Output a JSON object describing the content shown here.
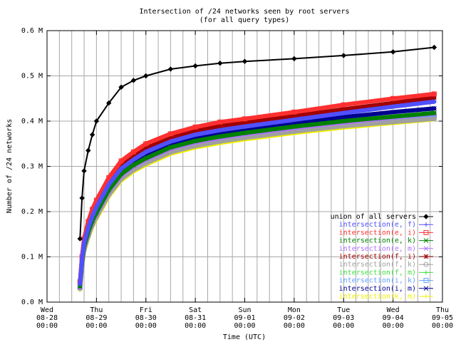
{
  "chart_data": {
    "type": "line",
    "title": "Intersection of /24 networks seen by root servers",
    "subtitle": "(for all query types)",
    "xlabel": "Time (UTC)",
    "ylabel": "Number of /24 networks",
    "x_range": [
      "2006-08-28 00:00",
      "2006-09-05 00:00"
    ],
    "ylim": [
      0,
      600000
    ],
    "grid": true,
    "legend_position": "bottom-right",
    "x_ticks": [
      {
        "day": "Wed",
        "date": "08-28",
        "time": "00:00"
      },
      {
        "day": "Thu",
        "date": "08-29",
        "time": "00:00"
      },
      {
        "day": "Fri",
        "date": "08-30",
        "time": "00:00"
      },
      {
        "day": "Sat",
        "date": "08-31",
        "time": "00:00"
      },
      {
        "day": "Sun",
        "date": "09-01",
        "time": "00:00"
      },
      {
        "day": "Mon",
        "date": "09-02",
        "time": "00:00"
      },
      {
        "day": "Tue",
        "date": "09-03",
        "time": "00:00"
      },
      {
        "day": "Wed",
        "date": "09-04",
        "time": "00:00"
      },
      {
        "day": "Thu",
        "date": "09-05",
        "time": "00:00"
      }
    ],
    "y_ticks": [
      {
        "value": 0,
        "label": "0.0 M"
      },
      {
        "value": 100000,
        "label": "0.1 M"
      },
      {
        "value": 200000,
        "label": "0.2 M"
      },
      {
        "value": 300000,
        "label": "0.3 M"
      },
      {
        "value": 400000,
        "label": "0.4 M"
      },
      {
        "value": 500000,
        "label": "0.5 M"
      },
      {
        "value": 600000,
        "label": "0.6 M"
      }
    ],
    "x_hours": [
      16,
      17,
      18,
      20,
      22,
      24,
      30,
      36,
      42,
      48,
      60,
      72,
      84,
      96,
      120,
      144,
      168,
      188
    ],
    "series": [
      {
        "name": "union of all servers",
        "color": "#000000",
        "marker": "diamond",
        "values": [
          140000,
          230000,
          290000,
          335000,
          370000,
          400000,
          440000,
          475000,
          490000,
          500000,
          515000,
          522000,
          528000,
          532000,
          538000,
          545000,
          553000,
          563000
        ]
      },
      {
        "name": "intersection(e, f)",
        "color": "#5050ff",
        "marker": "plus",
        "values": [
          40000,
          95000,
          130000,
          165000,
          190000,
          210000,
          260000,
          295000,
          315000,
          332000,
          355000,
          370000,
          380000,
          388000,
          403000,
          418000,
          432000,
          443000
        ]
      },
      {
        "name": "intersection(e, i)",
        "color": "#ff3030",
        "marker": "square",
        "values": [
          45000,
          100000,
          140000,
          178000,
          205000,
          225000,
          275000,
          312000,
          332000,
          350000,
          372000,
          387000,
          398000,
          405000,
          420000,
          436000,
          450000,
          460000
        ]
      },
      {
        "name": "intersection(e, k)",
        "color": "#008000",
        "marker": "x",
        "values": [
          35000,
          88000,
          123000,
          155000,
          180000,
          198000,
          248000,
          283000,
          303000,
          318000,
          342000,
          356000,
          366000,
          374000,
          388000,
          400000,
          410000,
          418000
        ]
      },
      {
        "name": "intersection(e, m)",
        "color": "#b070ff",
        "marker": "x",
        "values": [
          33000,
          86000,
          120000,
          152000,
          177000,
          195000,
          245000,
          280000,
          300000,
          315000,
          339000,
          353000,
          363000,
          371000,
          385000,
          397000,
          408000,
          416000
        ]
      },
      {
        "name": "intersection(f, i)",
        "color": "#a00000",
        "marker": "star",
        "values": [
          42000,
          97000,
          135000,
          171000,
          197000,
          217000,
          268000,
          304000,
          324000,
          342000,
          364000,
          379000,
          389000,
          396000,
          411000,
          426000,
          440000,
          452000
        ]
      },
      {
        "name": "intersection(f, k)",
        "color": "#a0a0a0",
        "marker": "circle",
        "values": [
          30000,
          80000,
          115000,
          145000,
          170000,
          188000,
          237000,
          272000,
          292000,
          307000,
          331000,
          345000,
          355000,
          363000,
          377000,
          389000,
          398000,
          405000
        ]
      },
      {
        "name": "intersection(f, m)",
        "color": "#40e040",
        "marker": "plus",
        "values": [
          34000,
          87000,
          121000,
          153000,
          178000,
          196000,
          246000,
          281000,
          301000,
          316000,
          340000,
          354000,
          364000,
          372000,
          386000,
          398000,
          409000,
          417000
        ]
      },
      {
        "name": "intersection(i, k)",
        "color": "#60a0ff",
        "marker": "square",
        "values": [
          32000,
          84000,
          118000,
          149000,
          174000,
          192000,
          241000,
          276000,
          296000,
          311000,
          335000,
          349000,
          359000,
          367000,
          381000,
          393000,
          403000,
          411000
        ]
      },
      {
        "name": "intersection(i, m)",
        "color": "#000090",
        "marker": "x",
        "values": [
          37000,
          91000,
          126000,
          160000,
          185000,
          204000,
          254000,
          289000,
          309000,
          325000,
          348000,
          363000,
          373000,
          381000,
          395000,
          409000,
          420000,
          428000
        ]
      },
      {
        "name": "intersection(k, m)",
        "color": "#f0f000",
        "marker": "plus",
        "values": [
          28000,
          78000,
          112000,
          142000,
          167000,
          185000,
          234000,
          269000,
          289000,
          304000,
          328000,
          342000,
          352000,
          360000,
          374000,
          386000,
          396000,
          404000
        ]
      }
    ]
  }
}
